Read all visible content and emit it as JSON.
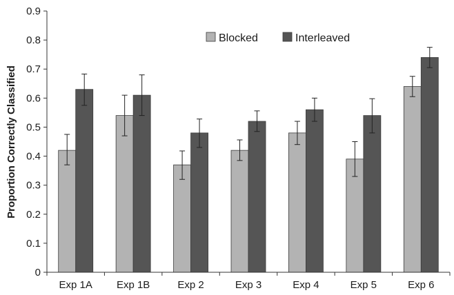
{
  "chart_data": {
    "type": "bar",
    "title": "",
    "xlabel": "",
    "ylabel": "Proportion Correctly Classified",
    "ylim": [
      0,
      0.9
    ],
    "yticks": [
      "0",
      "0.1",
      "0.2",
      "0.3",
      "0.4",
      "0.5",
      "0.6",
      "0.7",
      "0.8",
      "0.9"
    ],
    "categories": [
      "Exp 1A",
      "Exp 1B",
      "Exp 2",
      "Exp 3",
      "Exp 4",
      "Exp 5",
      "Exp 6"
    ],
    "grid": false,
    "legend": "top-right",
    "series": [
      {
        "name": "Blocked",
        "color": "#b3b3b3",
        "values": [
          0.42,
          0.54,
          0.37,
          0.42,
          0.48,
          0.39,
          0.64
        ],
        "error_low": [
          0.37,
          0.47,
          0.32,
          0.385,
          0.44,
          0.33,
          0.605
        ],
        "error_high": [
          0.475,
          0.61,
          0.418,
          0.456,
          0.52,
          0.45,
          0.675
        ]
      },
      {
        "name": "Interleaved",
        "color": "#555555",
        "values": [
          0.63,
          0.61,
          0.48,
          0.52,
          0.56,
          0.54,
          0.74
        ],
        "error_low": [
          0.575,
          0.54,
          0.43,
          0.485,
          0.52,
          0.48,
          0.705
        ],
        "error_high": [
          0.683,
          0.68,
          0.528,
          0.556,
          0.6,
          0.598,
          0.775
        ]
      }
    ]
  }
}
